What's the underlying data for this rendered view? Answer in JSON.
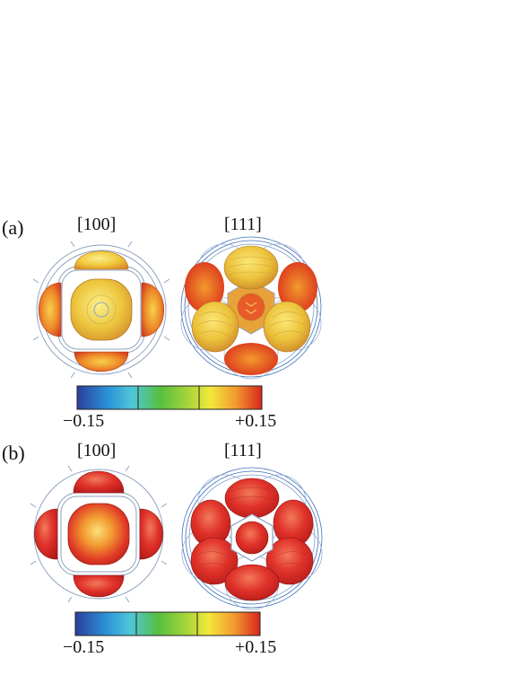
{
  "panels": [
    {
      "label": "(a)",
      "views": [
        "[100]",
        "[111]"
      ],
      "colorbar": {
        "min_label": "−0.15",
        "max_label": "+0.15"
      }
    },
    {
      "label": "(b)",
      "views": [
        "[100]",
        "[111]"
      ],
      "colorbar": {
        "min_label": "−0.15",
        "max_label": "+0.15"
      }
    }
  ],
  "colors": {
    "wire": "#8fa3bf",
    "wire_blue": "#3d6fb8",
    "a_lobe_top": "#f7d64a",
    "a_lobe_side": "#e85a28",
    "b_lobe": "#e02a22",
    "b_lobe_center": "#f29a30"
  },
  "colorbar_stops": [
    "#2c3e9c",
    "#2a8fd6",
    "#4fc7d8",
    "#56bf3e",
    "#a6d43a",
    "#f3e83a",
    "#f29a2e",
    "#d8261e"
  ]
}
